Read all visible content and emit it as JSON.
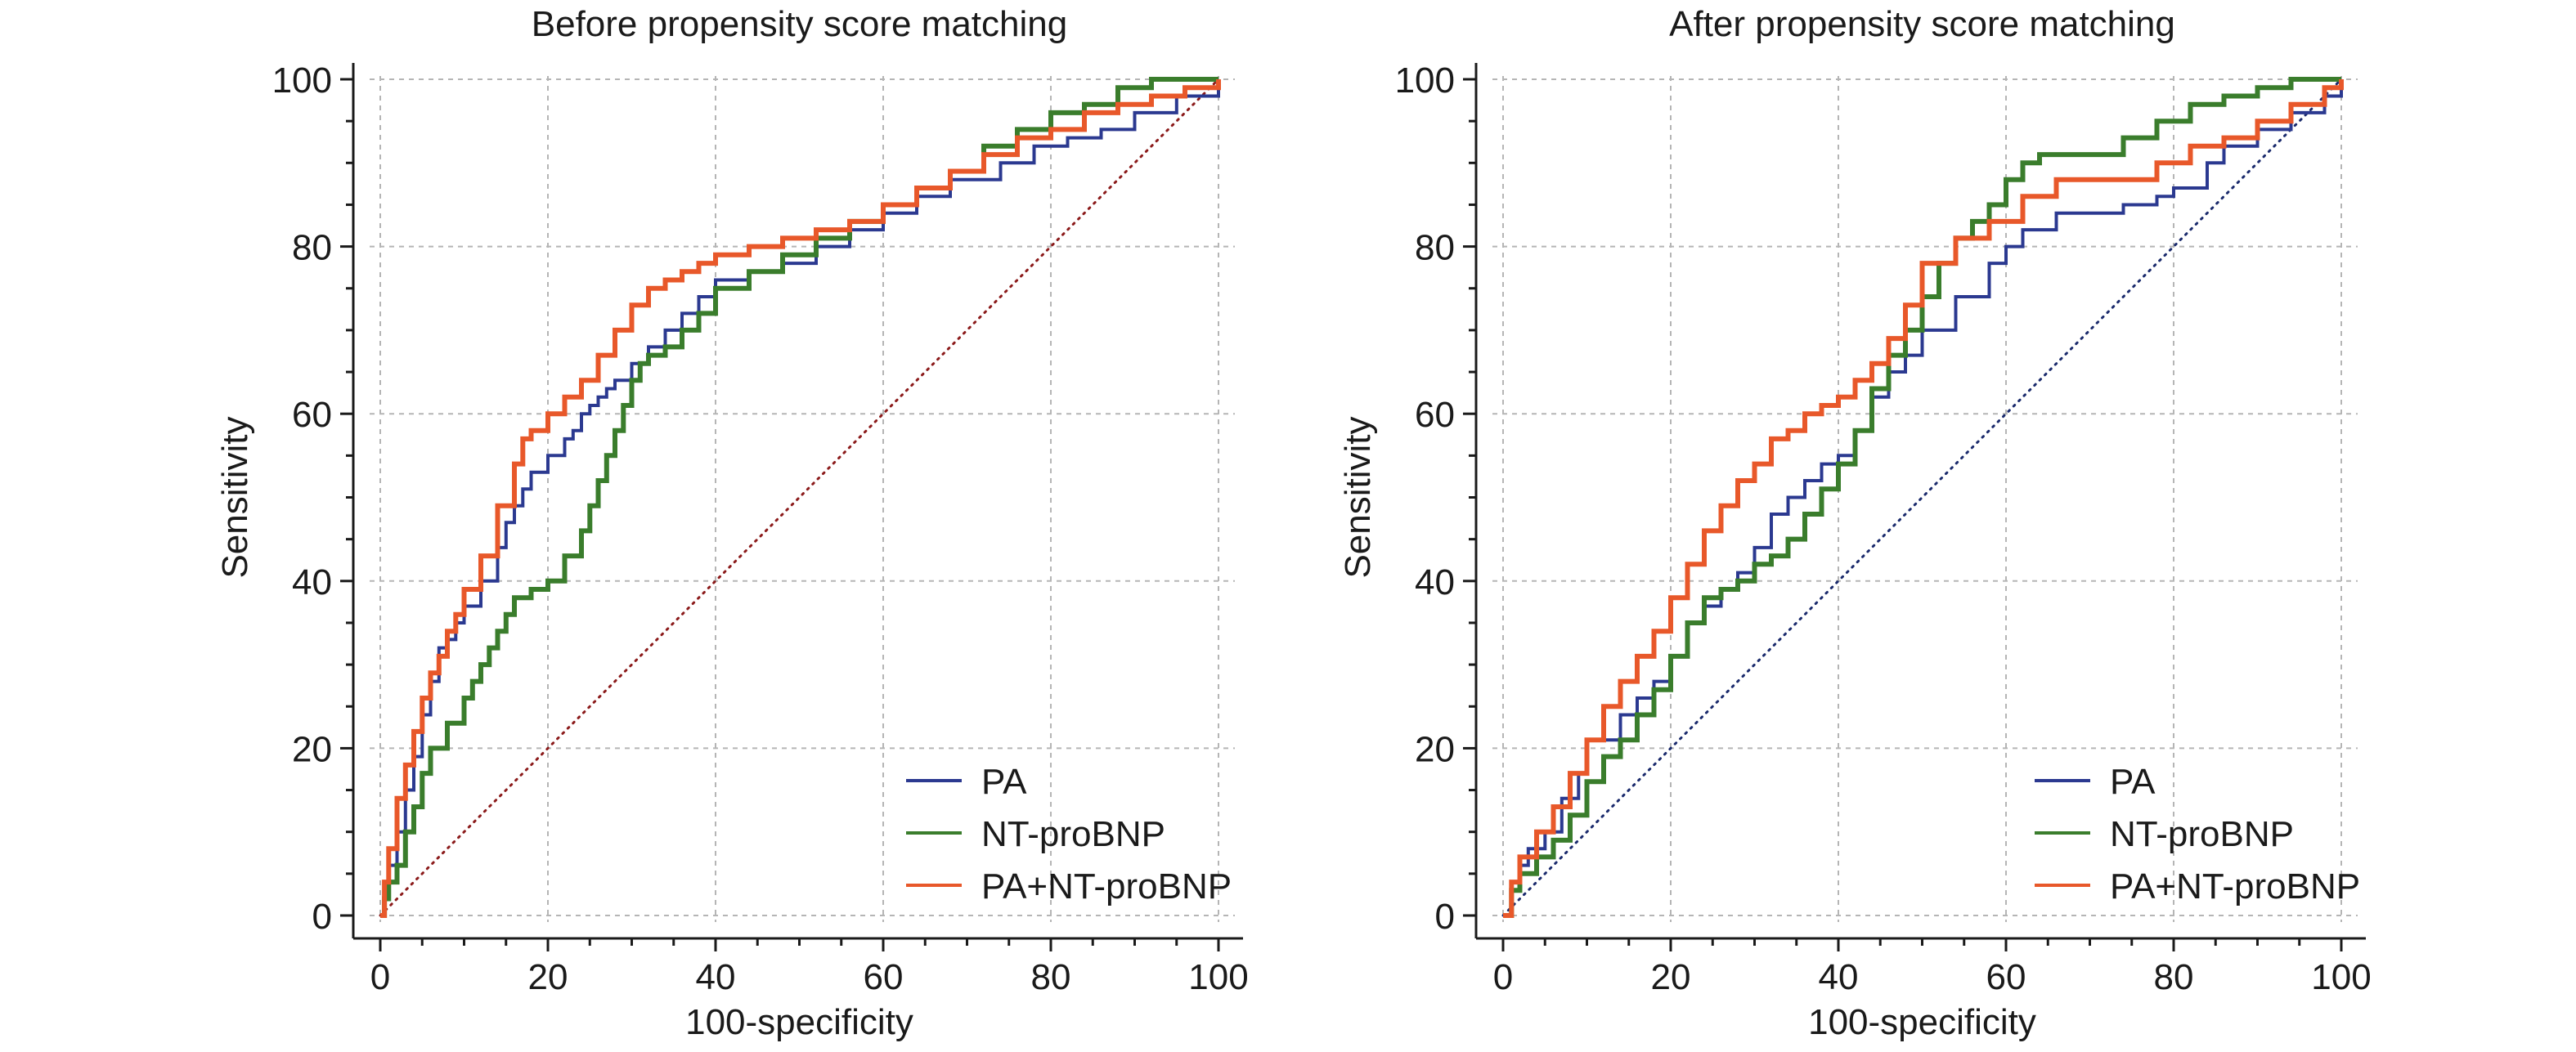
{
  "chart_data": [
    {
      "type": "line",
      "title": "Before propensity score matching",
      "xlabel": "100-specificity",
      "ylabel": "Sensitivity",
      "xlim": [
        0,
        100
      ],
      "ylim": [
        0,
        100
      ],
      "xticks": [
        0,
        20,
        40,
        60,
        80,
        100
      ],
      "yticks": [
        0,
        20,
        40,
        60,
        80,
        100
      ],
      "xtick_labels": [
        "0",
        "20",
        "40",
        "60",
        "80",
        "100"
      ],
      "ytick_labels": [
        "0",
        "20",
        "40",
        "60",
        "80",
        "100"
      ],
      "grid": true,
      "legend_position": "bottom-right",
      "reference_line": {
        "x": [
          0,
          100
        ],
        "y": [
          0,
          100
        ],
        "color": "#8b1a1a",
        "style": "dotted"
      },
      "series": [
        {
          "name": "PA",
          "color": "#2b3990",
          "x": [
            0,
            0.5,
            1,
            2,
            3,
            4,
            5,
            6,
            7,
            8,
            9,
            10,
            12,
            14,
            15,
            16,
            17,
            18,
            20,
            22,
            23,
            24,
            25,
            26,
            27,
            28,
            30,
            32,
            34,
            36,
            38,
            40,
            44,
            48,
            52,
            56,
            60,
            64,
            68,
            70,
            74,
            78,
            82,
            86,
            90,
            95,
            100
          ],
          "y": [
            0,
            3,
            6,
            10,
            15,
            19,
            24,
            28,
            32,
            33,
            35,
            37,
            40,
            44,
            47,
            49,
            51,
            53,
            55,
            57,
            58,
            60,
            61,
            62,
            63,
            64,
            66,
            68,
            70,
            72,
            74,
            76,
            77,
            78,
            80,
            82,
            84,
            86,
            88,
            88,
            90,
            92,
            93,
            94,
            96,
            98,
            100
          ]
        },
        {
          "name": "NT-proBNP",
          "color": "#3a7d2c",
          "x": [
            0,
            0.5,
            1,
            2,
            3,
            4,
            5,
            6,
            8,
            10,
            11,
            12,
            13,
            14,
            15,
            16,
            18,
            20,
            22,
            24,
            25,
            26,
            27,
            28,
            29,
            30,
            31,
            32,
            34,
            36,
            38,
            40,
            44,
            48,
            52,
            56,
            60,
            64,
            68,
            72,
            76,
            80,
            84,
            88,
            92,
            96,
            100
          ],
          "y": [
            0,
            2,
            4,
            6,
            10,
            13,
            17,
            20,
            23,
            26,
            28,
            30,
            32,
            34,
            36,
            38,
            39,
            40,
            43,
            46,
            49,
            52,
            55,
            58,
            61,
            64,
            66,
            67,
            68,
            70,
            72,
            75,
            77,
            79,
            81,
            83,
            85,
            87,
            89,
            92,
            94,
            96,
            97,
            99,
            100,
            100,
            100
          ]
        },
        {
          "name": "PA+NT-proBNP",
          "color": "#e8582a",
          "x": [
            0,
            0.5,
            1,
            2,
            3,
            4,
            5,
            6,
            7,
            8,
            9,
            10,
            12,
            14,
            16,
            17,
            18,
            20,
            22,
            24,
            26,
            28,
            30,
            32,
            34,
            36,
            38,
            40,
            44,
            48,
            52,
            56,
            60,
            64,
            68,
            72,
            76,
            80,
            84,
            88,
            92,
            96,
            100
          ],
          "y": [
            0,
            4,
            8,
            14,
            18,
            22,
            26,
            29,
            31,
            34,
            36,
            39,
            43,
            49,
            54,
            57,
            58,
            60,
            62,
            64,
            67,
            70,
            73,
            75,
            76,
            77,
            78,
            79,
            80,
            81,
            82,
            83,
            85,
            87,
            89,
            91,
            93,
            94,
            96,
            97,
            98,
            99,
            100
          ]
        }
      ]
    },
    {
      "type": "line",
      "title": "After propensity score matching",
      "xlabel": "100-specificity",
      "ylabel": "Sensitivity",
      "xlim": [
        0,
        100
      ],
      "ylim": [
        0,
        100
      ],
      "xticks": [
        0,
        20,
        40,
        60,
        80,
        100
      ],
      "yticks": [
        0,
        20,
        40,
        60,
        80,
        100
      ],
      "xtick_labels": [
        "0",
        "20",
        "40",
        "60",
        "80",
        "100"
      ],
      "ytick_labels": [
        "0",
        "20",
        "40",
        "60",
        "80",
        "100"
      ],
      "grid": true,
      "legend_position": "bottom-right",
      "reference_line": {
        "x": [
          0,
          100
        ],
        "y": [
          0,
          100
        ],
        "color": "#1a2a6c",
        "style": "dotted"
      },
      "series": [
        {
          "name": "PA",
          "color": "#2b3990",
          "x": [
            0,
            1,
            2,
            3,
            5,
            7,
            9,
            10,
            12,
            14,
            16,
            18,
            20,
            22,
            24,
            26,
            28,
            30,
            32,
            34,
            36,
            38,
            40,
            42,
            44,
            46,
            48,
            50,
            54,
            58,
            60,
            62,
            66,
            70,
            74,
            78,
            80,
            84,
            86,
            90,
            94,
            98,
            100
          ],
          "y": [
            0,
            4,
            6,
            8,
            10,
            14,
            17,
            21,
            21,
            24,
            26,
            28,
            31,
            35,
            37,
            39,
            41,
            44,
            48,
            50,
            52,
            54,
            55,
            58,
            62,
            65,
            67,
            70,
            74,
            78,
            80,
            82,
            84,
            84,
            85,
            86,
            87,
            90,
            92,
            94,
            96,
            98,
            100
          ]
        },
        {
          "name": "NT-proBNP",
          "color": "#3a7d2c",
          "x": [
            0,
            1,
            2,
            4,
            6,
            8,
            10,
            12,
            14,
            16,
            18,
            20,
            22,
            24,
            26,
            28,
            30,
            32,
            34,
            36,
            38,
            40,
            42,
            44,
            46,
            48,
            50,
            52,
            54,
            56,
            58,
            60,
            62,
            64,
            66,
            70,
            74,
            78,
            82,
            86,
            90,
            94,
            98,
            100
          ],
          "y": [
            0,
            3,
            5,
            7,
            9,
            12,
            16,
            19,
            21,
            24,
            27,
            31,
            35,
            38,
            39,
            40,
            42,
            43,
            45,
            48,
            51,
            54,
            58,
            63,
            67,
            70,
            74,
            78,
            81,
            83,
            85,
            88,
            90,
            91,
            91,
            91,
            93,
            95,
            97,
            98,
            99,
            100,
            100,
            100
          ]
        },
        {
          "name": "PA+NT-proBNP",
          "color": "#e8582a",
          "x": [
            0,
            1,
            2,
            4,
            6,
            8,
            10,
            12,
            14,
            16,
            18,
            20,
            22,
            24,
            26,
            28,
            30,
            32,
            34,
            36,
            38,
            40,
            42,
            44,
            46,
            48,
            50,
            54,
            58,
            62,
            66,
            70,
            74,
            78,
            82,
            86,
            90,
            94,
            98,
            100
          ],
          "y": [
            0,
            4,
            7,
            10,
            13,
            17,
            21,
            25,
            28,
            31,
            34,
            38,
            42,
            46,
            49,
            52,
            54,
            57,
            58,
            60,
            61,
            62,
            64,
            66,
            69,
            73,
            78,
            81,
            83,
            86,
            88,
            88,
            88,
            90,
            92,
            93,
            95,
            97,
            99,
            100
          ]
        }
      ]
    }
  ]
}
